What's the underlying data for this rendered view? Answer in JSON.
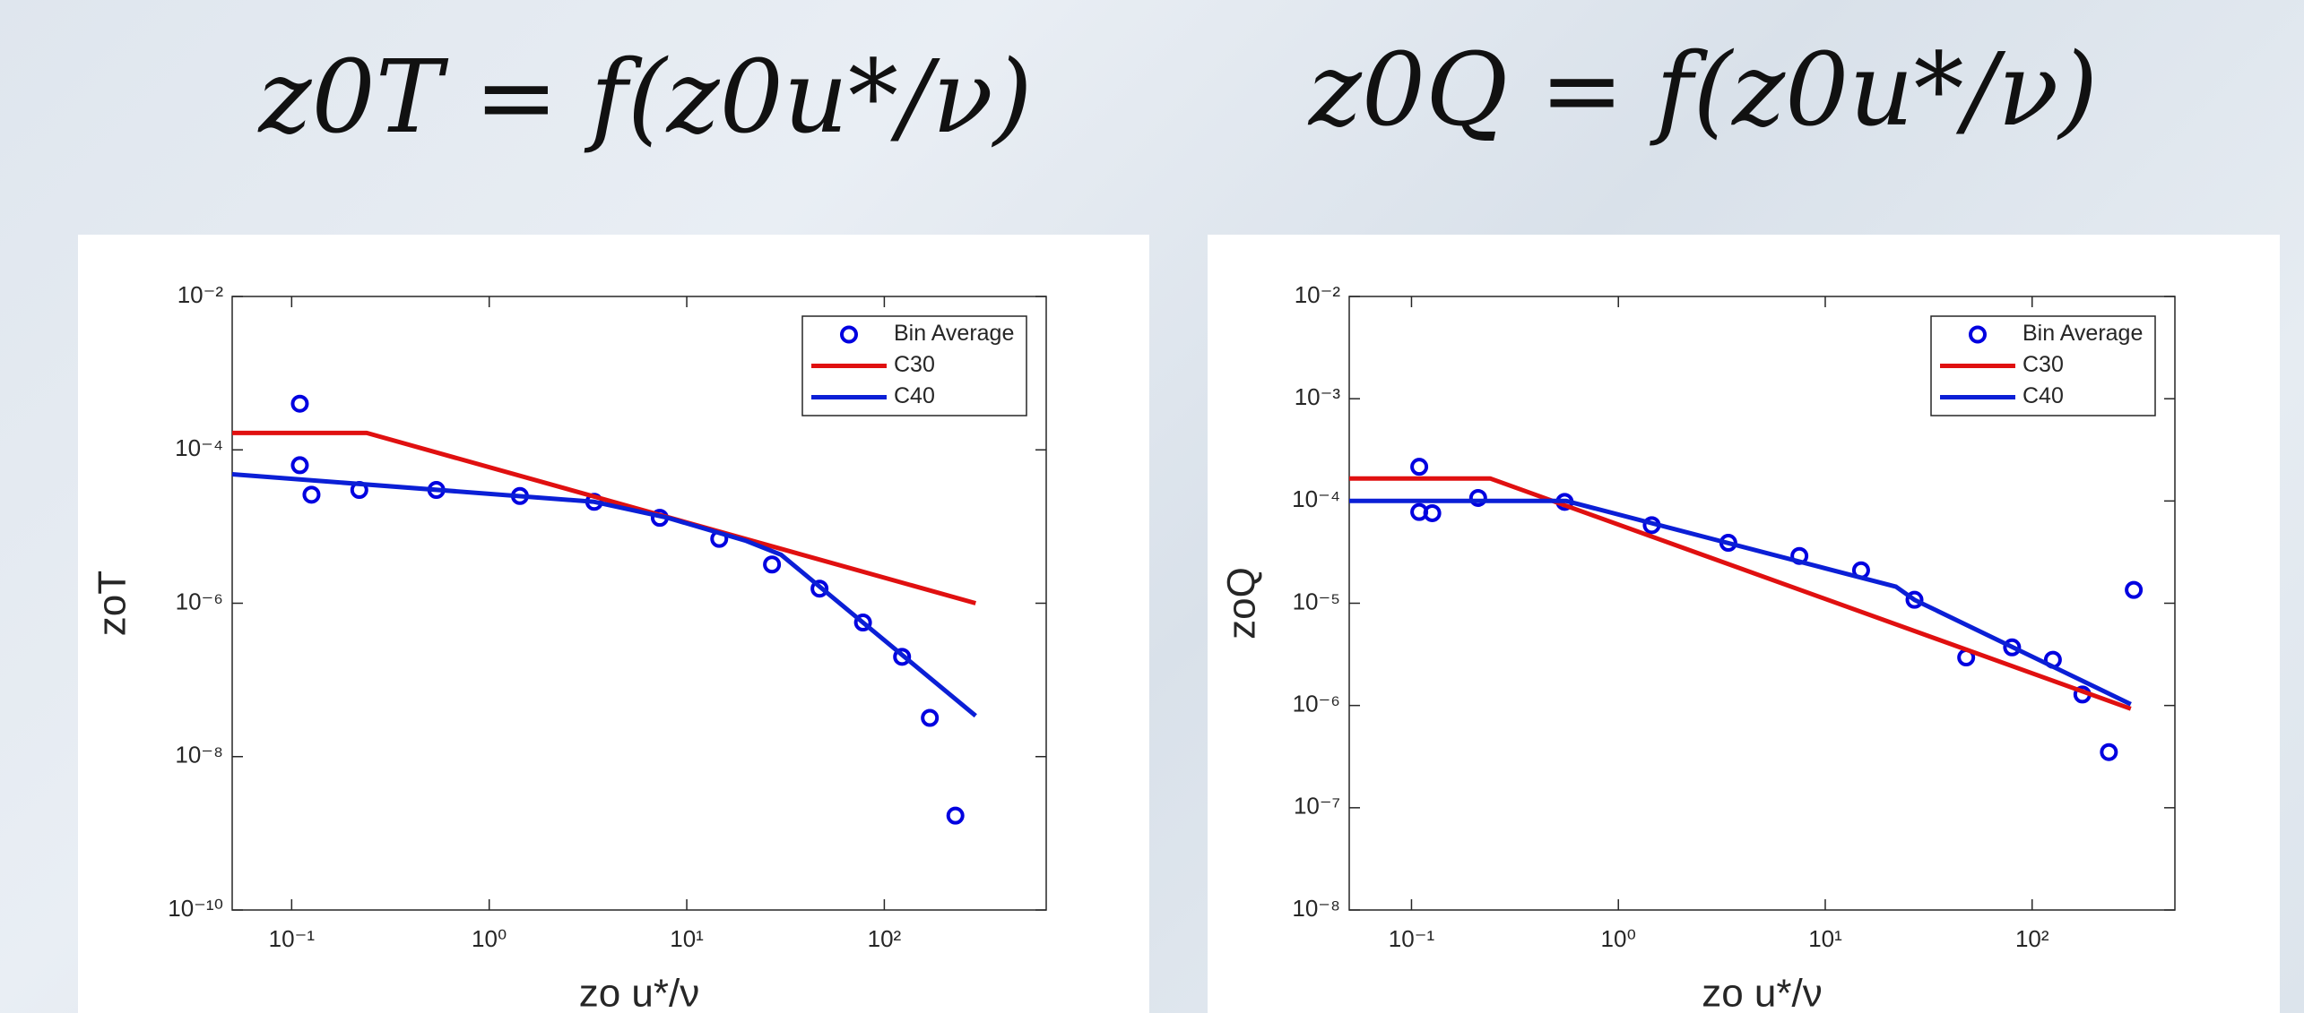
{
  "chart_data": [
    {
      "type": "line",
      "title": "z0T = f(z0u*/ν)",
      "x_label": "zo u*/ν",
      "y_label": "zoT",
      "log_x": true,
      "log_y": true,
      "legend": "upper right",
      "xlim": [
        0.05,
        660
      ],
      "ylim": [
        1e-10,
        0.01
      ],
      "xticks": [
        {
          "value": 0.1,
          "label": "10⁻¹"
        },
        {
          "value": 1,
          "label": "10⁰"
        },
        {
          "value": 10,
          "label": "10¹"
        },
        {
          "value": 100,
          "label": "10²"
        }
      ],
      "yticks": [
        {
          "value": 1e-10,
          "label": "10⁻¹⁰"
        },
        {
          "value": 1e-08,
          "label": "10⁻⁸"
        },
        {
          "value": 1e-06,
          "label": "10⁻⁶"
        },
        {
          "value": 0.0001,
          "label": "10⁻⁴"
        },
        {
          "value": 0.01,
          "label": "10⁻²"
        }
      ],
      "series": [
        {
          "name": "Bin Average",
          "color": "#0000e0",
          "mode": "markers",
          "x": [
            0.11,
            0.11,
            0.126,
            0.22,
            0.54,
            1.43,
            3.4,
            7.3,
            14.6,
            27,
            47,
            78,
            123,
            170,
            229
          ],
          "values": [
            0.0004,
            6.3e-05,
            2.6e-05,
            3e-05,
            3e-05,
            2.5e-05,
            2.1e-05,
            1.3e-05,
            6.9e-06,
            3.2e-06,
            1.55e-06,
            5.6e-07,
            2e-07,
            3.2e-08,
            1.7e-09
          ]
        },
        {
          "name": "C30",
          "color": "#e01010",
          "mode": "lines",
          "x": [
            0.05,
            0.24,
            290
          ],
          "values": [
            0.000166,
            0.000166,
            1e-06
          ]
        },
        {
          "name": "C40",
          "color": "#0b1fd6",
          "mode": "lines",
          "x": [
            0.05,
            3.4,
            8,
            20,
            30,
            290
          ],
          "values": [
            4.8e-05,
            2.1e-05,
            1.3e-05,
            6.5e-06,
            4.3e-06,
            3.4e-08
          ]
        }
      ]
    },
    {
      "type": "line",
      "title": "z0Q = f(z0u*/ν)",
      "x_label": "zo u*/ν",
      "y_label": "zoQ",
      "log_x": true,
      "log_y": true,
      "legend": "upper right",
      "xlim": [
        0.05,
        490
      ],
      "ylim": [
        1e-08,
        0.01
      ],
      "xticks": [
        {
          "value": 0.1,
          "label": "10⁻¹"
        },
        {
          "value": 1,
          "label": "10⁰"
        },
        {
          "value": 10,
          "label": "10¹"
        },
        {
          "value": 100,
          "label": "10²"
        }
      ],
      "yticks": [
        {
          "value": 1e-08,
          "label": "10⁻⁸"
        },
        {
          "value": 1e-07,
          "label": "10⁻⁷"
        },
        {
          "value": 1e-06,
          "label": "10⁻⁶"
        },
        {
          "value": 1e-05,
          "label": "10⁻⁵"
        },
        {
          "value": 0.0001,
          "label": "10⁻⁴"
        },
        {
          "value": 0.001,
          "label": "10⁻³"
        },
        {
          "value": 0.01,
          "label": "10⁻²"
        }
      ],
      "series": [
        {
          "name": "Bin Average",
          "color": "#0000e0",
          "mode": "markers",
          "x": [
            0.109,
            0.109,
            0.126,
            0.21,
            0.55,
            1.45,
            3.4,
            7.5,
            14.9,
            27,
            48,
            80,
            126,
            175,
            235,
            310
          ],
          "values": [
            0.000216,
            7.8e-05,
            7.6e-05,
            0.000107,
            9.8e-05,
            5.8e-05,
            3.9e-05,
            2.9e-05,
            2.1e-05,
            1.08e-05,
            2.95e-06,
            3.7e-06,
            2.8e-06,
            1.28e-06,
            3.5e-07,
            1.35e-05
          ]
        },
        {
          "name": "C30",
          "color": "#e01010",
          "mode": "lines",
          "x": [
            0.05,
            0.24,
            300
          ],
          "values": [
            0.000166,
            0.000166,
            9.3e-07
          ]
        },
        {
          "name": "C40",
          "color": "#0b1fd6",
          "mode": "lines",
          "x": [
            0.05,
            0.56,
            22,
            27,
            300
          ],
          "values": [
            0.0001,
            0.0001,
            1.45e-05,
            1.08e-05,
            1.03e-06
          ]
        }
      ]
    }
  ]
}
